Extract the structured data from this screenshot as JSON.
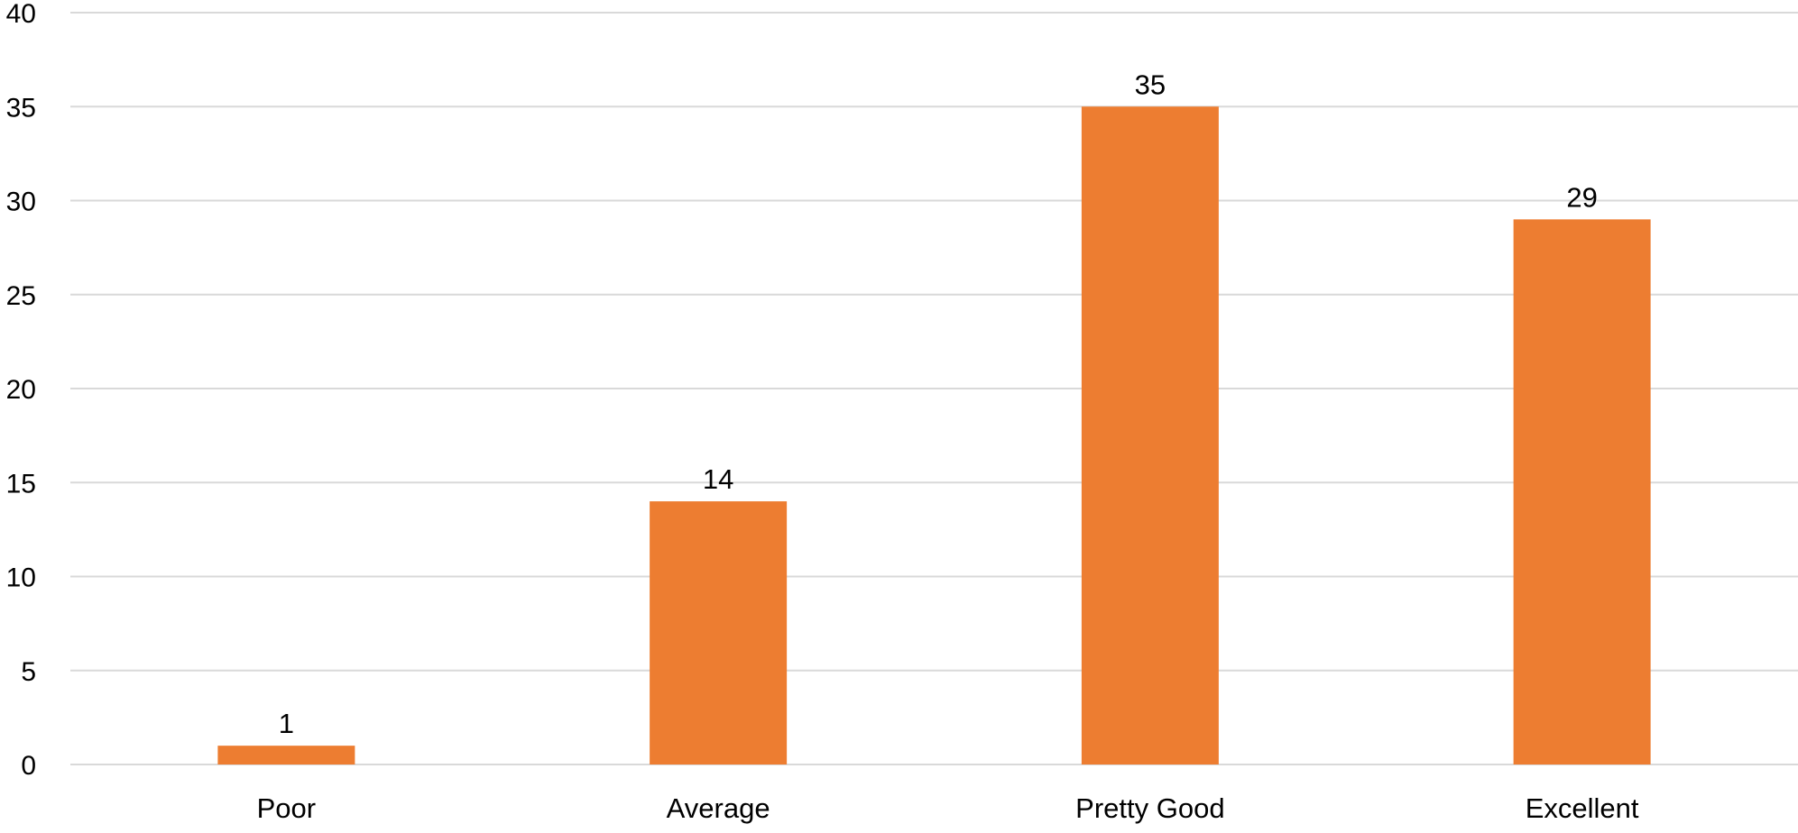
{
  "chart_data": {
    "type": "bar",
    "title": "",
    "xlabel": "",
    "ylabel": "",
    "categories": [
      "Poor",
      "Average",
      "Pretty Good",
      "Excellent"
    ],
    "values": [
      1,
      14,
      35,
      29
    ],
    "data_labels": [
      "1",
      "14",
      "35",
      "29"
    ],
    "ylim": [
      0,
      40
    ],
    "yticks": [
      0,
      5,
      10,
      15,
      20,
      25,
      30,
      35,
      40
    ],
    "ytick_labels": [
      "0",
      "5",
      "10",
      "15",
      "20",
      "25",
      "30",
      "35",
      "40"
    ],
    "grid": true,
    "legend": "none",
    "bar_color": "#ED7D31",
    "grid_color": "#D9D9D9"
  }
}
